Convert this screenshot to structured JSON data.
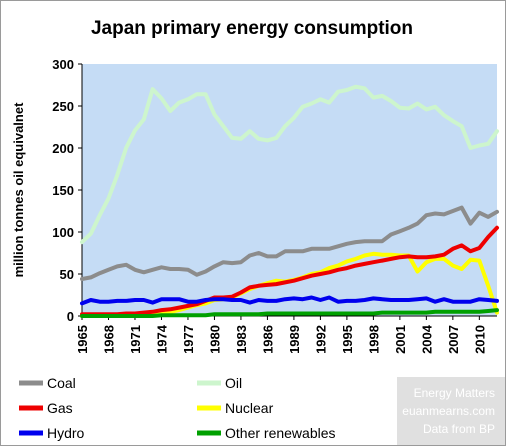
{
  "chart_data": {
    "type": "line",
    "title": "Japan primary energy consumption",
    "ylabel": "million tonnes oil equivalnet",
    "xlabel": "",
    "ylim": [
      0,
      300
    ],
    "xlim": [
      1965,
      2012
    ],
    "yticks": [
      0,
      50,
      100,
      150,
      200,
      250,
      300
    ],
    "xticks": [
      1965,
      1968,
      1971,
      1974,
      1977,
      1980,
      1983,
      1986,
      1989,
      1992,
      1995,
      1998,
      2001,
      2004,
      2007,
      2010
    ],
    "grid": false,
    "plot_background": "#c5dcf5",
    "legend_position": "bottom",
    "x": [
      1965,
      1966,
      1967,
      1968,
      1969,
      1970,
      1971,
      1972,
      1973,
      1974,
      1975,
      1976,
      1977,
      1978,
      1979,
      1980,
      1981,
      1982,
      1983,
      1984,
      1985,
      1986,
      1987,
      1988,
      1989,
      1990,
      1991,
      1992,
      1993,
      1994,
      1995,
      1996,
      1997,
      1998,
      1999,
      2000,
      2001,
      2002,
      2003,
      2004,
      2005,
      2006,
      2007,
      2008,
      2009,
      2010,
      2011,
      2012
    ],
    "series": [
      {
        "name": "Coal",
        "color": "#8c8c8c",
        "values": [
          44,
          46,
          51,
          55,
          59,
          61,
          55,
          52,
          55,
          58,
          56,
          56,
          55,
          49,
          53,
          59,
          64,
          63,
          64,
          72,
          75,
          71,
          71,
          77,
          77,
          77,
          80,
          80,
          80,
          83,
          86,
          88,
          89,
          89,
          89,
          97,
          101,
          105,
          110,
          120,
          122,
          121,
          125,
          129,
          110,
          123,
          118,
          124
        ]
      },
      {
        "name": "Oil",
        "color": "#cdf5cd",
        "values": [
          88,
          98,
          120,
          140,
          168,
          200,
          221,
          234,
          270,
          259,
          244,
          254,
          258,
          264,
          264,
          240,
          226,
          212,
          211,
          220,
          211,
          209,
          212,
          226,
          236,
          249,
          253,
          258,
          254,
          267,
          269,
          273,
          271,
          260,
          262,
          256,
          248,
          247,
          253,
          246,
          249,
          239,
          232,
          226,
          200,
          203,
          205,
          220
        ]
      },
      {
        "name": "Gas",
        "color": "#ee0000",
        "values": [
          2,
          2,
          2,
          2,
          2,
          3,
          3,
          4,
          5,
          7,
          8,
          10,
          12,
          14,
          18,
          22,
          22,
          23,
          28,
          34,
          36,
          37,
          38,
          40,
          42,
          45,
          48,
          50,
          52,
          55,
          57,
          60,
          62,
          64,
          66,
          68,
          70,
          71,
          70,
          70,
          71,
          73,
          80,
          84,
          77,
          81,
          94,
          105
        ]
      },
      {
        "name": "Nuclear",
        "color": "#ffff00",
        "values": [
          0,
          0,
          0,
          0,
          1,
          1,
          2,
          2,
          2,
          4,
          5,
          7,
          10,
          13,
          15,
          19,
          20,
          22,
          27,
          32,
          36,
          39,
          42,
          41,
          43,
          46,
          50,
          52,
          57,
          60,
          65,
          68,
          72,
          74,
          73,
          73,
          72,
          72,
          53,
          64,
          68,
          68,
          60,
          56,
          67,
          66,
          36,
          4
        ]
      },
      {
        "name": "Hydro",
        "color": "#0000ee",
        "values": [
          15,
          19,
          17,
          17,
          18,
          18,
          19,
          19,
          16,
          20,
          20,
          20,
          17,
          17,
          19,
          20,
          20,
          19,
          19,
          16,
          19,
          18,
          18,
          20,
          21,
          20,
          22,
          19,
          22,
          17,
          18,
          18,
          19,
          21,
          20,
          19,
          19,
          19,
          20,
          21,
          17,
          20,
          17,
          17,
          17,
          20,
          19,
          18
        ]
      },
      {
        "name": "Other renewables",
        "color": "#00a000",
        "values": [
          0,
          0,
          0,
          0,
          0,
          0,
          0,
          0,
          0,
          1,
          1,
          1,
          1,
          1,
          1,
          2,
          2,
          2,
          2,
          2,
          2,
          3,
          3,
          3,
          3,
          3,
          3,
          3,
          3,
          3,
          3,
          3,
          3,
          3,
          4,
          4,
          4,
          4,
          4,
          4,
          5,
          5,
          5,
          5,
          5,
          5,
          6,
          7
        ]
      }
    ],
    "legend_entries": [
      "Coal",
      "Oil",
      "Gas",
      "Nuclear",
      "Hydro",
      "Other renewables"
    ],
    "credits": [
      "Energy Matters",
      "euanmearns.com",
      "Data from BP"
    ]
  }
}
